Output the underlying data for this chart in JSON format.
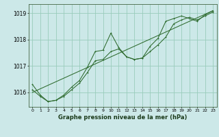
{
  "title": "Graphe pression niveau de la mer (hPa)",
  "bg_color": "#cce8e8",
  "line_color": "#2d6a2d",
  "grid_color": "#99ccbb",
  "xlim": [
    -0.5,
    23.5
  ],
  "ylim": [
    1015.45,
    1019.35
  ],
  "yticks": [
    1016,
    1017,
    1018,
    1019
  ],
  "xticks": [
    0,
    1,
    2,
    3,
    4,
    5,
    6,
    7,
    8,
    9,
    10,
    11,
    12,
    13,
    14,
    15,
    16,
    17,
    18,
    19,
    20,
    21,
    22,
    23
  ],
  "series1": [
    [
      0,
      1016.3
    ],
    [
      1,
      1015.9
    ],
    [
      2,
      1015.65
    ],
    [
      3,
      1015.7
    ],
    [
      4,
      1015.9
    ],
    [
      5,
      1016.2
    ],
    [
      6,
      1016.45
    ],
    [
      7,
      1016.95
    ],
    [
      8,
      1017.55
    ],
    [
      9,
      1017.6
    ],
    [
      10,
      1018.25
    ],
    [
      11,
      1017.7
    ],
    [
      12,
      1017.35
    ],
    [
      13,
      1017.25
    ],
    [
      14,
      1017.3
    ],
    [
      15,
      1017.75
    ],
    [
      16,
      1018.05
    ],
    [
      17,
      1018.7
    ],
    [
      18,
      1018.8
    ],
    [
      19,
      1018.9
    ],
    [
      20,
      1018.8
    ],
    [
      21,
      1018.7
    ],
    [
      22,
      1018.95
    ],
    [
      23,
      1019.1
    ]
  ],
  "series2": [
    [
      0,
      1016.1
    ],
    [
      1,
      1015.85
    ],
    [
      2,
      1015.65
    ],
    [
      3,
      1015.7
    ],
    [
      4,
      1015.85
    ],
    [
      5,
      1016.1
    ],
    [
      6,
      1016.35
    ],
    [
      7,
      1016.75
    ],
    [
      8,
      1017.2
    ],
    [
      9,
      1017.25
    ],
    [
      10,
      1017.55
    ],
    [
      11,
      1017.65
    ],
    [
      12,
      1017.35
    ],
    [
      13,
      1017.25
    ],
    [
      14,
      1017.3
    ],
    [
      15,
      1017.55
    ],
    [
      16,
      1017.8
    ],
    [
      17,
      1018.1
    ],
    [
      18,
      1018.6
    ],
    [
      19,
      1018.75
    ],
    [
      20,
      1018.85
    ],
    [
      21,
      1018.75
    ],
    [
      22,
      1018.9
    ],
    [
      23,
      1019.05
    ]
  ],
  "series_linear": [
    [
      0,
      1016.0
    ],
    [
      23,
      1019.1
    ]
  ]
}
